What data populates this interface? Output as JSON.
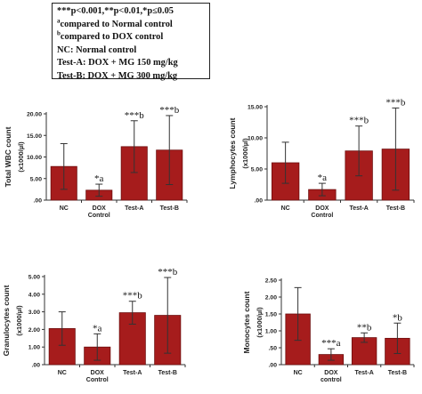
{
  "legend": {
    "line1": "***p<0.001,**p<0.01,*p≤0.05",
    "line2_sup": "a",
    "line2": "compared to Normal control",
    "line3_sup": "b",
    "line3": "compared  to DOX control",
    "line4": "NC: Normal control",
    "line5": "Test-A: DOX + MG 150 mg/kg",
    "line6": "Test-B: DOX + MG 300 mg/kg"
  },
  "colors": {
    "bar": "#a61c1c",
    "bar_edge": "#6e0d0d",
    "error": "#333333",
    "axis": "#333333"
  },
  "chart_data": [
    {
      "type": "bar",
      "ylabel": "Total WBC count",
      "ylabel2": "(x1000/µl)",
      "categories": [
        "NC",
        "DOX\nControl",
        "Test-A",
        "Test-B"
      ],
      "values": [
        7.8,
        2.3,
        12.4,
        11.6
      ],
      "errors": [
        5.3,
        1.4,
        6.0,
        8.0
      ],
      "annotations": [
        "",
        "*a",
        "***b",
        "***b"
      ],
      "ylim": [
        0,
        20
      ],
      "yticks": [
        0,
        5,
        10,
        15,
        20
      ],
      "ytick_labels": [
        ".00",
        "5.00",
        "10.00",
        "15.00",
        "20.00"
      ]
    },
    {
      "type": "bar",
      "ylabel": "Lymphocytes count",
      "ylabel2": "(x1000/µl)",
      "categories": [
        "NC",
        "DOX\nControl",
        "Test-A",
        "Test-B"
      ],
      "values": [
        6.0,
        1.7,
        7.9,
        8.2
      ],
      "errors": [
        3.3,
        1.0,
        4.0,
        6.6
      ],
      "annotations": [
        "",
        "*a",
        "***b",
        "***b"
      ],
      "ylim": [
        0,
        15
      ],
      "yticks": [
        0,
        5,
        10,
        15
      ],
      "ytick_labels": [
        ".00",
        "5.00",
        "10.00",
        "15.00"
      ]
    },
    {
      "type": "bar",
      "ylabel": "Granulocytes count",
      "ylabel2": "(x1000/µl)",
      "categories": [
        "NC",
        "DOX\nControl",
        "Test-A",
        "Test-B"
      ],
      "values": [
        2.05,
        1.0,
        2.95,
        2.8
      ],
      "errors": [
        0.95,
        0.75,
        0.65,
        2.15
      ],
      "annotations": [
        "",
        "*a",
        "***b",
        "***b"
      ],
      "ylim": [
        0,
        5
      ],
      "yticks": [
        0,
        1,
        2,
        3,
        4,
        5
      ],
      "ytick_labels": [
        ".00",
        "1.00",
        "2.00",
        "3.00",
        "4.00",
        "5.00"
      ]
    },
    {
      "type": "bar",
      "ylabel": "Monocytes count",
      "ylabel2": "(x1000/µl)",
      "categories": [
        "NC",
        "DOX\ncontrol",
        "Test-A",
        "Test-B"
      ],
      "values": [
        1.5,
        0.3,
        0.8,
        0.78
      ],
      "errors": [
        0.78,
        0.17,
        0.14,
        0.45
      ],
      "annotations": [
        "",
        "***a",
        "**b",
        "*b"
      ],
      "ylim": [
        0,
        2.5
      ],
      "yticks": [
        0,
        0.5,
        1,
        1.5,
        2,
        2.5
      ],
      "ytick_labels": [
        ".00",
        ".50",
        "1.00",
        "1.50",
        "2.00",
        "2.50"
      ]
    }
  ]
}
